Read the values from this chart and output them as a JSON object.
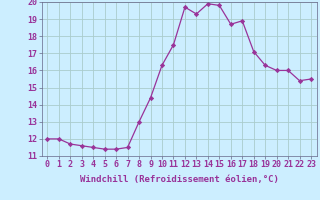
{
  "x": [
    0,
    1,
    2,
    3,
    4,
    5,
    6,
    7,
    8,
    9,
    10,
    11,
    12,
    13,
    14,
    15,
    16,
    17,
    18,
    19,
    20,
    21,
    22,
    23
  ],
  "y": [
    12.0,
    12.0,
    11.7,
    11.6,
    11.5,
    11.4,
    11.4,
    11.5,
    13.0,
    14.4,
    16.3,
    17.5,
    19.7,
    19.3,
    19.9,
    19.8,
    18.7,
    18.9,
    17.1,
    16.3,
    16.0,
    16.0,
    15.4,
    15.5
  ],
  "line_color": "#993399",
  "marker": "D",
  "marker_size": 2.2,
  "background_color": "#cceeff",
  "grid_color": "#aacccc",
  "xlabel": "Windchill (Refroidissement éolien,°C)",
  "ylim": [
    11,
    20
  ],
  "xlim_min": -0.5,
  "xlim_max": 23.5,
  "yticks": [
    11,
    12,
    13,
    14,
    15,
    16,
    17,
    18,
    19,
    20
  ],
  "xticks": [
    0,
    1,
    2,
    3,
    4,
    5,
    6,
    7,
    8,
    9,
    10,
    11,
    12,
    13,
    14,
    15,
    16,
    17,
    18,
    19,
    20,
    21,
    22,
    23
  ],
  "xlabel_fontsize": 6.5,
  "tick_fontsize": 6.0,
  "label_color": "#993399"
}
